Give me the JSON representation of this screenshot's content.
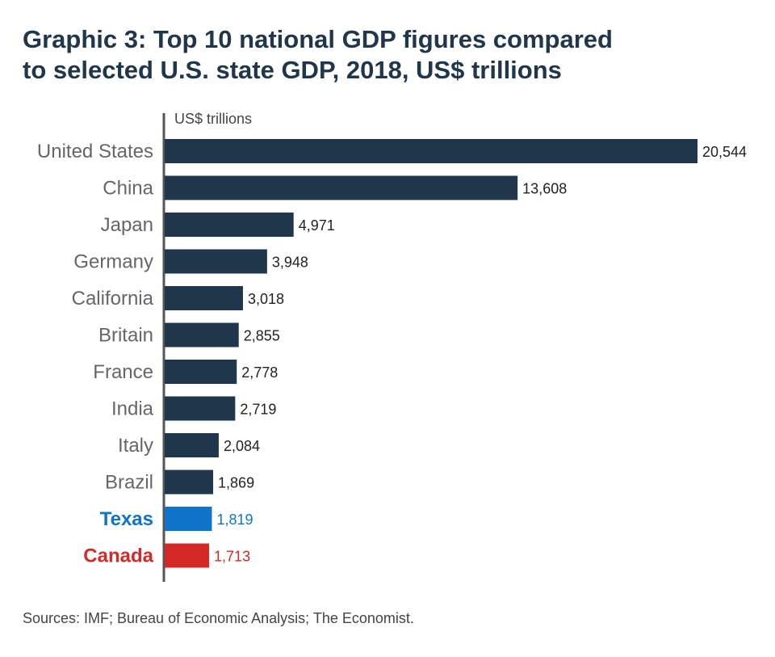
{
  "title_lines": [
    "Graphic 3: Top 10 national GDP figures compared",
    "to selected U.S. state GDP, 2018, US$ trillions"
  ],
  "source": "Sources: IMF; Bureau of Economic Analysis; The Economist.",
  "colors": {
    "default_bar": "#20364a",
    "texas": "#0f74c9",
    "canada": "#d42a27",
    "axis": "#555555",
    "category_label": "#666666",
    "value_label": "#222222"
  },
  "chart_data": {
    "type": "bar",
    "orientation": "horizontal",
    "axis_label": "US$ trillions",
    "categories": [
      "United States",
      "China",
      "Japan",
      "Germany",
      "California",
      "Britain",
      "France",
      "India",
      "Italy",
      "Brazil",
      "Texas",
      "Canada"
    ],
    "values": [
      20544,
      13608,
      4971,
      3948,
      3018,
      2855,
      2778,
      2719,
      2084,
      1869,
      1819,
      1713
    ],
    "value_labels": [
      "20,544",
      "13,608",
      "4,971",
      "3,948",
      "3,018",
      "2,855",
      "2,778",
      "2,719",
      "2,084",
      "1,869",
      "1,819",
      "1,713"
    ],
    "highlights": {
      "Texas": "#0f74c9",
      "Canada": "#d42a27"
    },
    "xlim": [
      0,
      20544
    ],
    "grid": false,
    "legend": "none"
  }
}
